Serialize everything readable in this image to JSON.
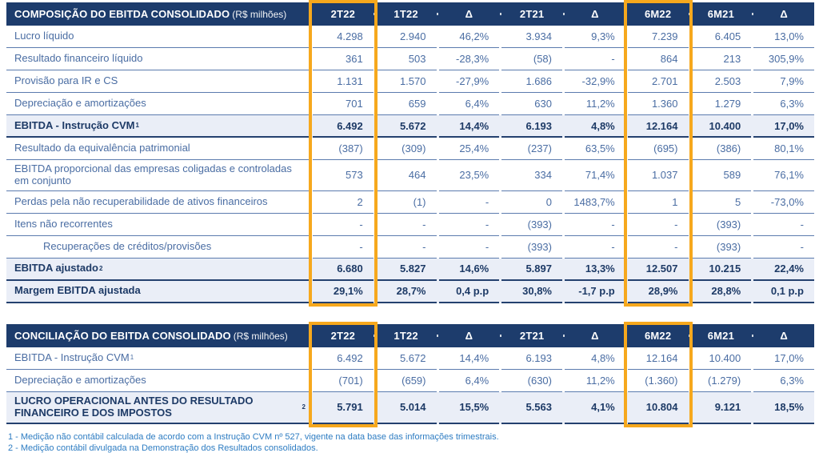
{
  "colors": {
    "header_navy": "#1d3c6c",
    "highlight_orange": "#f6a81d",
    "body_text_blue": "#4a6da3",
    "subtotal_bg": "#eaeef7",
    "footnote_blue": "#2d7cc2"
  },
  "tables": [
    {
      "title": "COMPOSIÇÃO DO EBITDA CONSOLIDADO",
      "unit": "(R$ milhões)",
      "columns": [
        "2T22",
        "1T22",
        "Δ",
        "2T21",
        "Δ",
        "6M22",
        "6M21",
        "Δ"
      ],
      "highlight_columns": [
        0,
        5
      ],
      "rows": [
        {
          "label": "Lucro líquido",
          "values": [
            "4.298",
            "2.940",
            "46,2%",
            "3.934",
            "9,3%",
            "7.239",
            "6.405",
            "13,0%"
          ]
        },
        {
          "label": "Resultado financeiro líquido",
          "values": [
            "361",
            "503",
            "-28,3%",
            "(58)",
            "-",
            "864",
            "213",
            "305,9%"
          ]
        },
        {
          "label": "Provisão para IR e CS",
          "values": [
            "1.131",
            "1.570",
            "-27,9%",
            "1.686",
            "-32,9%",
            "2.701",
            "2.503",
            "7,9%"
          ]
        },
        {
          "label": "Depreciação e amortizações",
          "values": [
            "701",
            "659",
            "6,4%",
            "630",
            "11,2%",
            "1.360",
            "1.279",
            "6,3%"
          ]
        },
        {
          "label": "EBITDA - Instrução CVM ",
          "sup": "1",
          "style": "subtotal",
          "values": [
            "6.492",
            "5.672",
            "14,4%",
            "6.193",
            "4,8%",
            "12.164",
            "10.400",
            "17,0%"
          ]
        },
        {
          "label": "Resultado da equivalência patrimonial",
          "values": [
            "(387)",
            "(309)",
            "25,4%",
            "(237)",
            "63,5%",
            "(695)",
            "(386)",
            "80,1%"
          ]
        },
        {
          "label": "EBITDA proporcional das empresas coligadas e controladas em conjunto",
          "values": [
            "573",
            "464",
            "23,5%",
            "334",
            "71,4%",
            "1.037",
            "589",
            "76,1%"
          ]
        },
        {
          "label": "Perdas pela não recuperabilidade de ativos financeiros",
          "values": [
            "2",
            "(1)",
            "-",
            "0",
            "1483,7%",
            "1",
            "5",
            "-73,0%"
          ]
        },
        {
          "label": "Itens não recorrentes",
          "values": [
            "-",
            "-",
            "-",
            "(393)",
            "-",
            "-",
            "(393)",
            "-"
          ]
        },
        {
          "label": "Recuperações de créditos/provisões",
          "indent": true,
          "values": [
            "-",
            "-",
            "-",
            "(393)",
            "-",
            "-",
            "(393)",
            "-"
          ]
        },
        {
          "label": "EBITDA ajustado",
          "sup": "2",
          "style": "subtotal",
          "values": [
            "6.680",
            "5.827",
            "14,6%",
            "5.897",
            "13,3%",
            "12.507",
            "10.215",
            "22,4%"
          ]
        },
        {
          "label": "Margem EBITDA ajustada",
          "style": "subtotal",
          "values": [
            "29,1%",
            "28,7%",
            "0,4 p.p",
            "30,8%",
            "-1,7 p.p",
            "28,9%",
            "28,8%",
            "0,1 p.p"
          ]
        }
      ]
    },
    {
      "title": "CONCILIAÇÃO DO EBITDA CONSOLIDADO",
      "unit": "(R$ milhões)",
      "columns": [
        "2T22",
        "1T22",
        "Δ",
        "2T21",
        "Δ",
        "6M22",
        "6M21",
        "Δ"
      ],
      "highlight_columns": [
        0,
        5
      ],
      "rows": [
        {
          "label": "EBITDA - Instrução CVM ",
          "sup": "1",
          "values": [
            "6.492",
            "5.672",
            "14,4%",
            "6.193",
            "4,8%",
            "12.164",
            "10.400",
            "17,0%"
          ]
        },
        {
          "label": "Depreciação e amortizações",
          "values": [
            "(701)",
            "(659)",
            "6,4%",
            "(630)",
            "11,2%",
            "(1.360)",
            "(1.279)",
            "6,3%"
          ]
        },
        {
          "label": "LUCRO OPERACIONAL ANTES DO RESULTADO FINANCEIRO E DOS IMPOSTOS ",
          "sup": "2",
          "style": "subtotal",
          "values": [
            "5.791",
            "5.014",
            "15,5%",
            "5.563",
            "4,1%",
            "10.804",
            "9.121",
            "18,5%"
          ]
        }
      ]
    }
  ],
  "footnotes": [
    "1 - Medição não contábil calculada de acordo com a Instrução CVM nº 527, vigente na data base das informações trimestrais.",
    "2 - Medição contábil divulgada na Demonstração dos Resultados consolidados."
  ]
}
